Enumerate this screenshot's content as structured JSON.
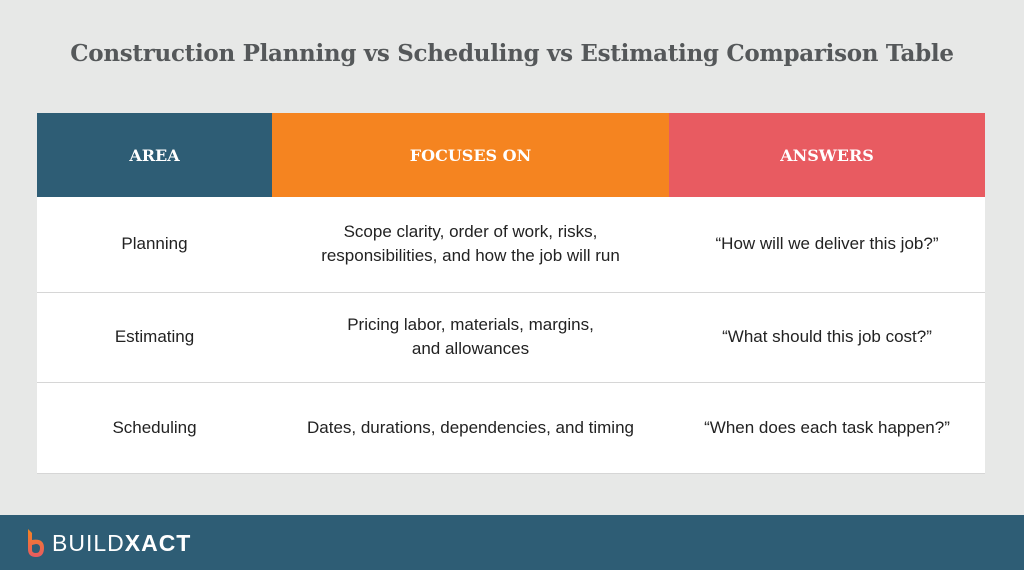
{
  "title": "Construction Planning vs Scheduling vs Estimating Comparison Table",
  "table": {
    "headers": [
      {
        "label": "AREA",
        "color": "#2e5d75"
      },
      {
        "label": "FOCUSES ON",
        "color": "#f58420"
      },
      {
        "label": "ANSWERS",
        "color": "#e85b61"
      }
    ],
    "rows": [
      {
        "area": "Planning",
        "focus_line1": "Scope clarity, order of work, risks,",
        "focus_line2": "responsibilities, and how the job will run",
        "answer": "“How will we deliver this job?”"
      },
      {
        "area": "Estimating",
        "focus_line1": "Pricing labor, materials, margins,",
        "focus_line2": "and allowances",
        "answer": "“What should this job cost?”"
      },
      {
        "area": "Scheduling",
        "focus_line1": "Dates, durations, dependencies, and timing",
        "focus_line2": "",
        "answer": "“When does each task happen?”"
      }
    ]
  },
  "footer": {
    "logo_part1": "BUILD",
    "logo_part2": "XACT",
    "logo_icon": "buildxact-b-logo"
  }
}
